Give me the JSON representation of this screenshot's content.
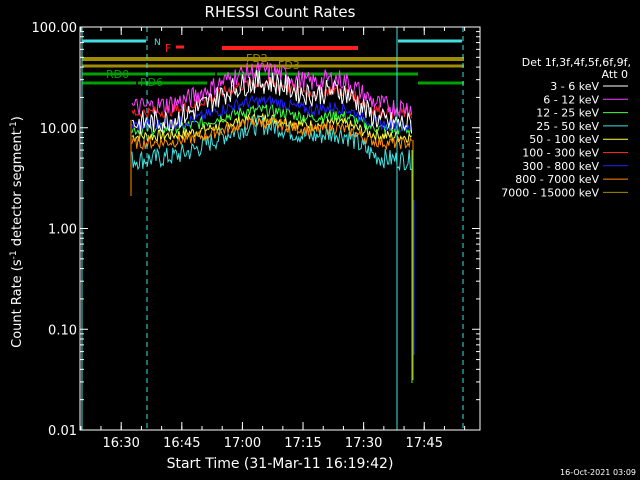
{
  "chart_data": {
    "type": "line",
    "title": "RHESSI Count Rates",
    "xlabel": "Start Time (31-Mar-11 16:19:42)",
    "ylabel_main": "Count Rate (s",
    "ylabel_sup1": "-1",
    "ylabel_mid": " detector segment",
    "ylabel_sup2": "-1",
    "ylabel_end": ")",
    "yscale": "log",
    "ylim": [
      0.01,
      100
    ],
    "xlim_minutes": [
      16.33,
      17.98
    ],
    "y_ticks": [
      {
        "value": 100,
        "label": "100.00"
      },
      {
        "value": 10,
        "label": "10.00"
      },
      {
        "value": 1,
        "label": "1.00"
      },
      {
        "value": 0.1,
        "label": "0.10"
      },
      {
        "value": 0.01,
        "label": "0.01"
      }
    ],
    "x_ticks": [
      {
        "time": "16:30",
        "label": "16:30"
      },
      {
        "time": "16:45",
        "label": "16:45"
      },
      {
        "time": "17:00",
        "label": "17:00"
      },
      {
        "time": "17:15",
        "label": "17:15"
      },
      {
        "time": "17:30",
        "label": "17:30"
      },
      {
        "time": "17:45",
        "label": "17:45"
      }
    ],
    "legend_header": [
      "Det 1f,3f,4f,5f,6f,9f,",
      "Att 0"
    ],
    "legend_position": "right",
    "series": [
      {
        "name": "3 - 6 keV",
        "color": "#ffffff",
        "base": 11,
        "bump": 2.6,
        "noise": 0.12
      },
      {
        "name": "6 - 12 keV",
        "color": "#ff40ff",
        "base": 16,
        "bump": 2.3,
        "noise": 0.1
      },
      {
        "name": "12 - 25 keV",
        "color": "#40ff40",
        "base": 9.6,
        "bump": 1.55,
        "noise": 0.06
      },
      {
        "name": "25 - 50 keV",
        "color": "#40e0e0",
        "base": 4.8,
        "bump": 2.2,
        "noise": 0.1
      },
      {
        "name": "50 - 100 keV",
        "color": "#ffff40",
        "base": 8.2,
        "bump": 1.5,
        "noise": 0.06
      },
      {
        "name": "100 - 300 keV",
        "color": "#ff2020",
        "base": 14,
        "bump": 2.0,
        "noise": 0.06
      },
      {
        "name": "300 - 800 keV",
        "color": "#2020ff",
        "base": 10.5,
        "bump": 1.75,
        "noise": 0.06
      },
      {
        "name": "800 - 7000 keV",
        "color": "#ff8c00",
        "base": 7.0,
        "bump": 1.6,
        "noise": 0.06
      },
      {
        "name": "7000 - 15000 keV",
        "color": "#a08c00",
        "base": 0,
        "bump": 0,
        "noise": 0
      }
    ],
    "annotations": [
      {
        "text": "N",
        "color": "#40e0e0"
      },
      {
        "text": "F",
        "color": "#ff2020"
      },
      {
        "text": "FD2",
        "color": "#a08c00"
      },
      {
        "text": "FD3",
        "color": "#a08c00"
      },
      {
        "text": "RD0",
        "color": "#00a000"
      },
      {
        "text": "RD6",
        "color": "#00a000"
      }
    ],
    "timestamp": "16-Oct-2021 03:09"
  }
}
